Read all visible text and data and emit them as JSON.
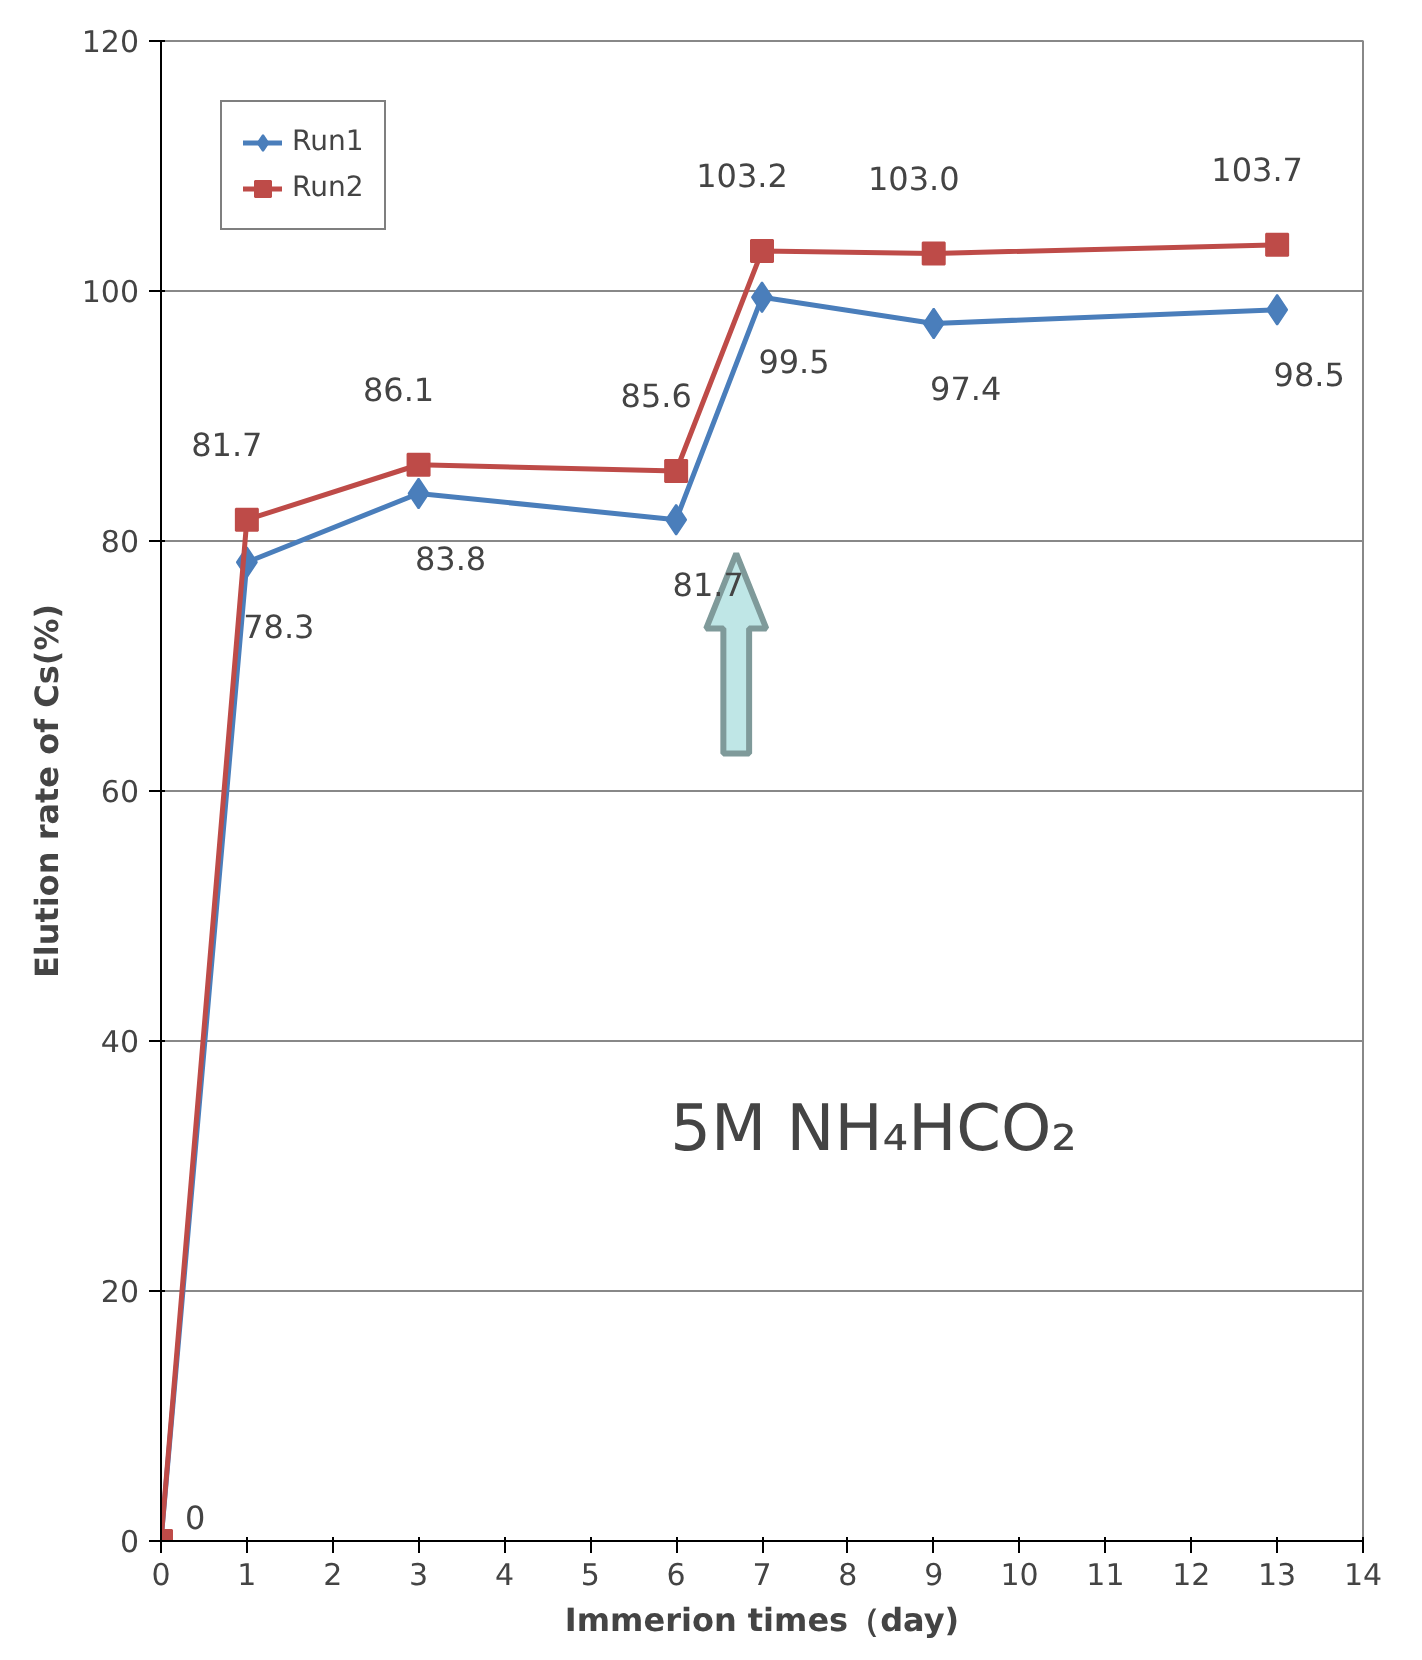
{
  "chart_data": {
    "type": "line",
    "xlabel": "Immerion times（day)",
    "ylabel": "Elution rate of Cs(%)",
    "x": [
      0,
      1,
      3,
      6,
      7,
      9,
      13
    ],
    "series": [
      {
        "name": "Run1",
        "color": "#4a7ebb",
        "marker": "diamond",
        "values": [
          0,
          78.3,
          83.8,
          81.7,
          99.5,
          97.4,
          98.5
        ],
        "value_labels": [
          null,
          "78.3",
          "83.8",
          "81.7",
          "99.5",
          "97.4",
          "98.5"
        ]
      },
      {
        "name": "Run2",
        "color": "#be4b48",
        "marker": "square",
        "values": [
          0,
          81.7,
          86.1,
          85.6,
          103.2,
          103.0,
          103.7
        ],
        "value_labels": [
          "0",
          "81.7",
          "86.1",
          "85.6",
          "103.2",
          "103.0",
          "103.7"
        ]
      }
    ],
    "xlim": [
      0,
      14
    ],
    "xticks": [
      0,
      1,
      2,
      3,
      4,
      5,
      6,
      7,
      8,
      9,
      10,
      11,
      12,
      13,
      14
    ],
    "ylim": [
      0,
      120
    ],
    "yticks": [
      0,
      20,
      40,
      60,
      80,
      100,
      120
    ],
    "grid": "y",
    "legend": "top left",
    "line_style": "solid",
    "annotations": [
      "5M NH₄HCO₂"
    ]
  }
}
